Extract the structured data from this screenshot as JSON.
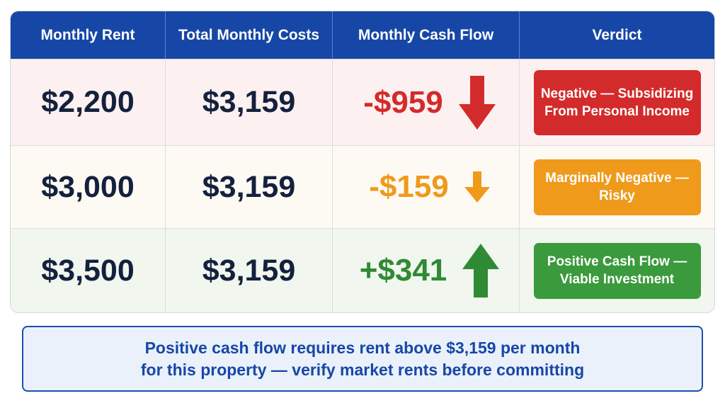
{
  "table": {
    "headers": [
      "Monthly Rent",
      "Total Monthly Costs",
      "Monthly Cash Flow",
      "Verdict"
    ],
    "rows": [
      {
        "rent": "$2,200",
        "costs": "$3,159",
        "cash_flow": "-$959",
        "trend_icon": "arrow-down-large-icon",
        "flow_color": "#d32b2b",
        "verdict": "Negative — Subsidizing From Personal Income",
        "verdict_color": "#d32b2b"
      },
      {
        "rent": "$3,000",
        "costs": "$3,159",
        "cash_flow": "-$159",
        "trend_icon": "arrow-down-small-icon",
        "flow_color": "#ef9a1b",
        "verdict": "Marginally Negative — Risky",
        "verdict_color": "#ef9a1b"
      },
      {
        "rent": "$3,500",
        "costs": "$3,159",
        "cash_flow": "+$341",
        "trend_icon": "arrow-up-large-icon",
        "flow_color": "#2f8a34",
        "verdict": "Positive Cash Flow — Viable Investment",
        "verdict_color": "#3a9a3c"
      }
    ]
  },
  "note": {
    "line1": "Positive cash flow requires rent above $3,159 per month",
    "line2": "for this property — verify market rents before committing"
  },
  "colors": {
    "header_bg": "#1747a6",
    "text_dark": "#14213d",
    "note_accent": "#1747a6"
  }
}
